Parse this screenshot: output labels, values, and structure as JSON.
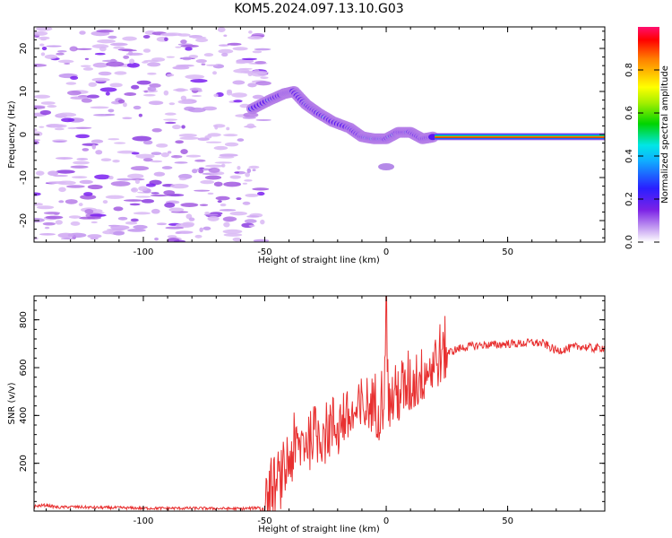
{
  "figure_title": "KOM5.2024.097.13.10.G03",
  "colorbar": {
    "label": "Normalized spectral amplitude",
    "ticks": [
      "0.0",
      "0.2",
      "0.4",
      "0.6",
      "0.8"
    ]
  },
  "chart_data": [
    {
      "type": "heatmap",
      "title": "KOM5.2024.097.13.10.G03",
      "xlabel": "Height of straight line (km)",
      "ylabel": "Frequency (Hz)",
      "xlim": [
        -145,
        90
      ],
      "ylim": [
        -25,
        25
      ],
      "x_ticks": [
        -100,
        -50,
        0,
        50
      ],
      "x_tick_labels": [
        "-100",
        "-50",
        "0",
        "50"
      ],
      "y_ticks": [
        -20,
        -10,
        0,
        10,
        20
      ],
      "y_tick_labels": [
        "-20",
        "-10",
        "0",
        "10",
        "20"
      ],
      "colormap": "rainbow (purple to red)",
      "color_range": [
        0.0,
        1.0
      ],
      "grid": false,
      "ridge": {
        "description": "main spectral trace",
        "x": [
          -55,
          -48,
          -42,
          -38,
          -33,
          -28,
          -22,
          -15,
          -10,
          -5,
          0,
          5,
          10,
          15,
          20,
          40,
          60,
          90
        ],
        "frequency": [
          6,
          8,
          9.5,
          10,
          7,
          5,
          3,
          1.5,
          -0.5,
          -1,
          -1,
          0.5,
          0.5,
          -1,
          -0.5,
          -0.5,
          -0.5,
          -0.5
        ]
      }
    },
    {
      "type": "line",
      "xlabel": "Height of straight line (km)",
      "ylabel": "SNR (v/v)",
      "xlim": [
        -145,
        90
      ],
      "ylim": [
        0,
        900
      ],
      "x_ticks": [
        -100,
        -50,
        0,
        50
      ],
      "x_tick_labels": [
        "-100",
        "-50",
        "0",
        "50"
      ],
      "y_ticks": [
        200,
        400,
        600,
        800
      ],
      "y_tick_labels": [
        "200",
        "400",
        "600",
        "800"
      ],
      "color": "#e83030",
      "grid": false,
      "series": [
        {
          "x": [
            -145,
            -140,
            -135,
            -130,
            -120,
            -110,
            -100,
            -90,
            -80,
            -70,
            -60,
            -55,
            -50,
            -48,
            -45,
            -42,
            -40,
            -38,
            -35,
            -32,
            -30,
            -28,
            -25,
            -22,
            -20,
            -18,
            -15,
            -12,
            -10,
            -8,
            -5,
            -3,
            -1,
            0,
            1,
            3,
            5,
            8,
            10,
            12,
            15,
            18,
            20,
            22,
            25,
            30,
            35,
            40,
            45,
            50,
            55,
            60,
            65,
            70,
            75,
            80,
            85,
            90
          ],
          "y": [
            20,
            25,
            15,
            18,
            15,
            14,
            12,
            12,
            12,
            11,
            10,
            12,
            20,
            60,
            100,
            150,
            220,
            250,
            280,
            310,
            320,
            330,
            350,
            360,
            360,
            380,
            390,
            400,
            420,
            430,
            440,
            460,
            500,
            880,
            450,
            470,
            490,
            510,
            530,
            550,
            580,
            600,
            620,
            640,
            660,
            680,
            690,
            695,
            695,
            700,
            700,
            705,
            700,
            670,
            680,
            690,
            680,
            685
          ]
        }
      ]
    }
  ]
}
